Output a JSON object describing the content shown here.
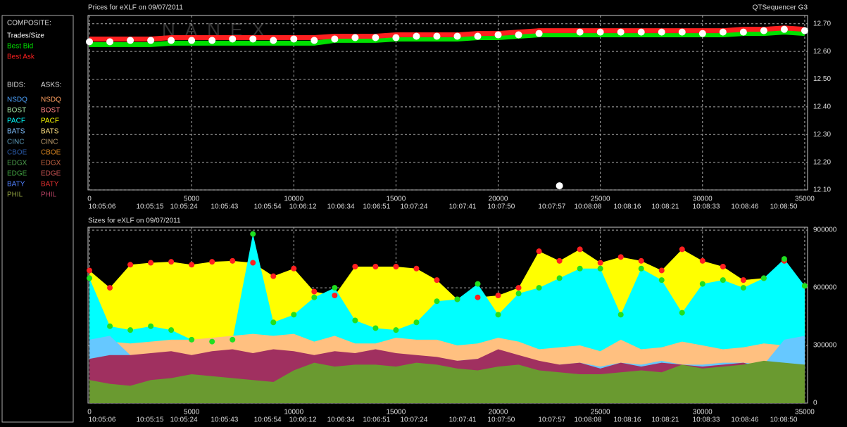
{
  "legend": {
    "composite_title": "COMPOSITE:",
    "bids_header": "BIDS:",
    "asks_header": "ASKS:",
    "exchanges": [
      {
        "name": "NSDQ",
        "bid_color": "#4da3ff",
        "ask_color": "#ffa060"
      },
      {
        "name": "BOST",
        "bid_color": "#a0e0a0",
        "ask_color": "#ff8080"
      },
      {
        "name": "PACF",
        "bid_color": "#00ffff",
        "ask_color": "#ffff00"
      },
      {
        "name": "BATS",
        "bid_color": "#80c0ff",
        "ask_color": "#ffe080"
      },
      {
        "name": "CINC",
        "bid_color": "#5f9fbf",
        "ask_color": "#c0a070"
      },
      {
        "name": "CBOE",
        "bid_color": "#2a5aa8",
        "ask_color": "#d08020"
      },
      {
        "name": "EDGX",
        "bid_color": "#4a9a4a",
        "ask_color": "#c06040"
      },
      {
        "name": "EDGE",
        "bid_color": "#40a040",
        "ask_color": "#c05050"
      },
      {
        "name": "BATY",
        "bid_color": "#5080ff",
        "ask_color": "#e03030"
      },
      {
        "name": "PHIL",
        "bid_color": "#90a040",
        "ask_color": "#b04060"
      }
    ]
  },
  "chart_data": [
    {
      "type": "line",
      "title": "Prices for  eXLF  on  09/07/2011",
      "corner_label": "QTSequencer G3",
      "watermark": "NANEX",
      "x": [
        0,
        1000,
        2000,
        3000,
        4000,
        5000,
        6000,
        7000,
        8000,
        9000,
        10000,
        11000,
        12000,
        13000,
        14000,
        15000,
        16000,
        17000,
        18000,
        19000,
        20000,
        21000,
        22000,
        23000,
        24000,
        25000,
        26000,
        27000,
        28000,
        29000,
        30000,
        31000,
        32000,
        33000,
        34000,
        35000
      ],
      "series": [
        {
          "name": "Trades/Size",
          "color": "#ffffff",
          "style": "dots",
          "values": [
            12.635,
            12.635,
            12.64,
            12.64,
            12.64,
            12.64,
            12.64,
            12.645,
            12.645,
            12.64,
            12.645,
            12.64,
            12.645,
            12.65,
            12.65,
            12.65,
            12.655,
            12.655,
            12.655,
            12.655,
            12.66,
            12.66,
            12.665,
            12.115,
            12.67,
            12.67,
            12.67,
            12.67,
            12.67,
            12.67,
            12.665,
            12.67,
            12.67,
            12.675,
            12.68,
            12.675
          ]
        },
        {
          "name": "Best Bid",
          "color": "#00e000",
          "style": "band",
          "values": [
            12.625,
            12.625,
            12.625,
            12.625,
            12.63,
            12.63,
            12.63,
            12.63,
            12.63,
            12.63,
            12.63,
            12.63,
            12.64,
            12.64,
            12.64,
            12.645,
            12.645,
            12.645,
            12.645,
            12.65,
            12.65,
            12.655,
            12.66,
            12.66,
            12.66,
            12.66,
            12.66,
            12.66,
            12.66,
            12.66,
            12.66,
            12.66,
            12.665,
            12.665,
            12.67,
            12.665
          ]
        },
        {
          "name": "Best Ask",
          "color": "#ff2020",
          "style": "band",
          "values": [
            12.645,
            12.645,
            12.645,
            12.645,
            12.65,
            12.65,
            12.65,
            12.65,
            12.65,
            12.65,
            12.65,
            12.65,
            12.655,
            12.655,
            12.655,
            12.66,
            12.66,
            12.66,
            12.66,
            12.665,
            12.665,
            12.67,
            12.675,
            12.675,
            12.675,
            12.675,
            12.675,
            12.675,
            12.675,
            12.675,
            12.675,
            12.675,
            12.68,
            12.68,
            12.685,
            12.68
          ]
        }
      ],
      "xlim": [
        -70,
        35140
      ],
      "xticks": [
        0,
        5000,
        10000,
        15000,
        20000,
        25000,
        30000,
        35000
      ],
      "time_ticks": [
        {
          "value": 620,
          "label": "10:05:06"
        },
        {
          "value": 2960,
          "label": "10:05:15"
        },
        {
          "value": 4620,
          "label": "10:05:24"
        },
        {
          "value": 6610,
          "label": "10:05:43"
        },
        {
          "value": 8720,
          "label": "10:05:54"
        },
        {
          "value": 10440,
          "label": "10:06:12"
        },
        {
          "value": 12300,
          "label": "10:06:34"
        },
        {
          "value": 14050,
          "label": "10:06:51"
        },
        {
          "value": 15880,
          "label": "10:07:24"
        },
        {
          "value": 18260,
          "label": "10:07:41"
        },
        {
          "value": 20150,
          "label": "10:07:50"
        },
        {
          "value": 22630,
          "label": "10:07:57"
        },
        {
          "value": 24390,
          "label": "10:08:08"
        },
        {
          "value": 26320,
          "label": "10:08:16"
        },
        {
          "value": 28180,
          "label": "10:08:21"
        },
        {
          "value": 30180,
          "label": "10:08:33"
        },
        {
          "value": 32070,
          "label": "10:08:46"
        },
        {
          "value": 33970,
          "label": "10:08:50"
        }
      ],
      "ylim": [
        12.1,
        12.73
      ],
      "yticks": [
        {
          "value": 12.1,
          "label": "12.10"
        },
        {
          "value": 12.2,
          "label": "12.20"
        },
        {
          "value": 12.3,
          "label": "12.30"
        },
        {
          "value": 12.4,
          "label": "12.40"
        },
        {
          "value": 12.5,
          "label": "12.50"
        },
        {
          "value": 12.6,
          "label": "12.60"
        },
        {
          "value": 12.7,
          "label": "12.70"
        }
      ],
      "grid": true
    },
    {
      "type": "area",
      "title": "Sizes for  eXLF  on  09/07/2011",
      "x": [
        0,
        1000,
        2000,
        3000,
        4000,
        5000,
        6000,
        7000,
        8000,
        9000,
        10000,
        11000,
        12000,
        13000,
        14000,
        15000,
        16000,
        17000,
        18000,
        19000,
        20000,
        21000,
        22000,
        23000,
        24000,
        25000,
        26000,
        27000,
        28000,
        29000,
        30000,
        31000,
        32000,
        33000,
        34000,
        35000
      ],
      "series": [
        {
          "color": "#ffff00",
          "marker_color": "#ff2020",
          "values": [
            690000,
            600000,
            720000,
            730000,
            735000,
            720000,
            735000,
            740000,
            730000,
            660000,
            700000,
            580000,
            560000,
            710000,
            710000,
            710000,
            700000,
            640000,
            540000,
            550000,
            560000,
            600000,
            790000,
            740000,
            800000,
            730000,
            760000,
            740000,
            690000,
            800000,
            740000,
            710000,
            640000,
            650000,
            740000,
            610000
          ]
        },
        {
          "color": "#00ffff",
          "marker_color": "#20e020",
          "values": [
            650000,
            400000,
            380000,
            400000,
            380000,
            330000,
            320000,
            330000,
            880000,
            420000,
            460000,
            550000,
            600000,
            430000,
            390000,
            380000,
            420000,
            530000,
            540000,
            620000,
            460000,
            570000,
            600000,
            650000,
            700000,
            700000,
            460000,
            700000,
            640000,
            470000,
            620000,
            640000,
            600000,
            650000,
            750000,
            610000
          ]
        },
        {
          "color": "#ffc080",
          "values": [
            300000,
            320000,
            310000,
            320000,
            330000,
            330000,
            340000,
            350000,
            360000,
            350000,
            360000,
            320000,
            350000,
            310000,
            310000,
            340000,
            330000,
            330000,
            300000,
            310000,
            340000,
            320000,
            280000,
            290000,
            300000,
            270000,
            330000,
            280000,
            290000,
            320000,
            300000,
            280000,
            290000,
            310000,
            300000,
            280000
          ]
        },
        {
          "color": "#66c8ff",
          "values": [
            330000,
            350000,
            250000,
            220000,
            230000,
            220000,
            230000,
            240000,
            240000,
            230000,
            240000,
            220000,
            240000,
            200000,
            200000,
            230000,
            220000,
            230000,
            220000,
            230000,
            220000,
            200000,
            200000,
            200000,
            210000,
            190000,
            210000,
            200000,
            220000,
            200000,
            200000,
            210000,
            210000,
            200000,
            330000,
            350000
          ]
        },
        {
          "color": "#a03060",
          "values": [
            230000,
            250000,
            250000,
            260000,
            270000,
            250000,
            270000,
            280000,
            260000,
            280000,
            270000,
            250000,
            270000,
            260000,
            280000,
            260000,
            250000,
            240000,
            220000,
            230000,
            280000,
            250000,
            220000,
            200000,
            210000,
            180000,
            210000,
            190000,
            210000,
            200000,
            190000,
            200000,
            210000,
            180000,
            200000,
            170000
          ]
        },
        {
          "color": "#6a9a30",
          "values": [
            120000,
            100000,
            90000,
            120000,
            130000,
            150000,
            140000,
            130000,
            120000,
            110000,
            170000,
            210000,
            190000,
            200000,
            200000,
            190000,
            210000,
            200000,
            180000,
            170000,
            190000,
            200000,
            170000,
            160000,
            150000,
            150000,
            160000,
            170000,
            160000,
            200000,
            180000,
            190000,
            200000,
            220000,
            210000,
            200000
          ]
        }
      ],
      "xlim": [
        -70,
        35140
      ],
      "xticks": [
        0,
        5000,
        10000,
        15000,
        20000,
        25000,
        30000,
        35000
      ],
      "time_ticks": [
        {
          "value": 620,
          "label": "10:05:06"
        },
        {
          "value": 2960,
          "label": "10:05:15"
        },
        {
          "value": 4620,
          "label": "10:05:24"
        },
        {
          "value": 6610,
          "label": "10:05:43"
        },
        {
          "value": 8720,
          "label": "10:05:54"
        },
        {
          "value": 10440,
          "label": "10:06:12"
        },
        {
          "value": 12300,
          "label": "10:06:34"
        },
        {
          "value": 14050,
          "label": "10:06:51"
        },
        {
          "value": 15880,
          "label": "10:07:24"
        },
        {
          "value": 18260,
          "label": "10:07:41"
        },
        {
          "value": 20150,
          "label": "10:07:50"
        },
        {
          "value": 22630,
          "label": "10:07:57"
        },
        {
          "value": 24390,
          "label": "10:08:08"
        },
        {
          "value": 26320,
          "label": "10:08:16"
        },
        {
          "value": 28180,
          "label": "10:08:21"
        },
        {
          "value": 30180,
          "label": "10:08:33"
        },
        {
          "value": 32070,
          "label": "10:08:46"
        },
        {
          "value": 33970,
          "label": "10:08:50"
        }
      ],
      "ylim": [
        0,
        915000
      ],
      "yticks": [
        0,
        300000,
        600000,
        900000
      ],
      "grid": true
    }
  ]
}
